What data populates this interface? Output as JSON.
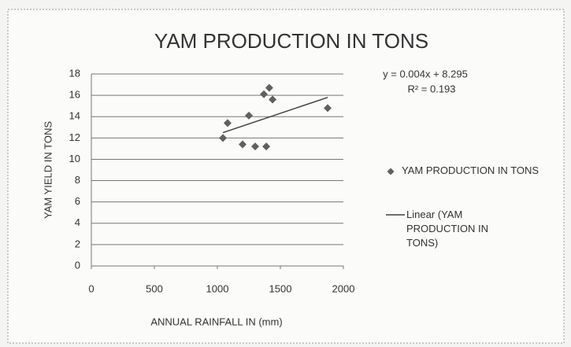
{
  "chart_data": {
    "type": "scatter",
    "title": "YAM PRODUCTION IN TONS",
    "xlabel": "ANNUAL RAINFALL IN (mm)",
    "ylabel": "YAM YIELD IN TONS",
    "annotations": [
      "y = 0.004x + 8.295",
      "R² = 0.193"
    ],
    "series": [
      {
        "name": "YAM PRODUCTION IN TONS",
        "color": "#606060",
        "x": [
          1044,
          1081,
          1200,
          1250,
          1300,
          1388,
          1369,
          1412,
          1438,
          1875
        ],
        "values": [
          12.0,
          13.4,
          11.4,
          14.1,
          11.2,
          11.2,
          16.1,
          16.7,
          15.6,
          14.8
        ]
      }
    ],
    "trendline": {
      "name": "Linear (YAM PRODUCTION IN TONS)",
      "color": "#404040",
      "x": [
        1044,
        1875
      ],
      "values": [
        12.5,
        15.8
      ]
    },
    "xlim": [
      0,
      2000
    ],
    "xticks": [
      0,
      500,
      1000,
      1500,
      2000
    ],
    "ylim": [
      0,
      18
    ],
    "yticks": [
      0,
      2,
      4,
      6,
      8,
      10,
      12,
      14,
      16,
      18
    ],
    "grid": true,
    "legend": "right"
  }
}
